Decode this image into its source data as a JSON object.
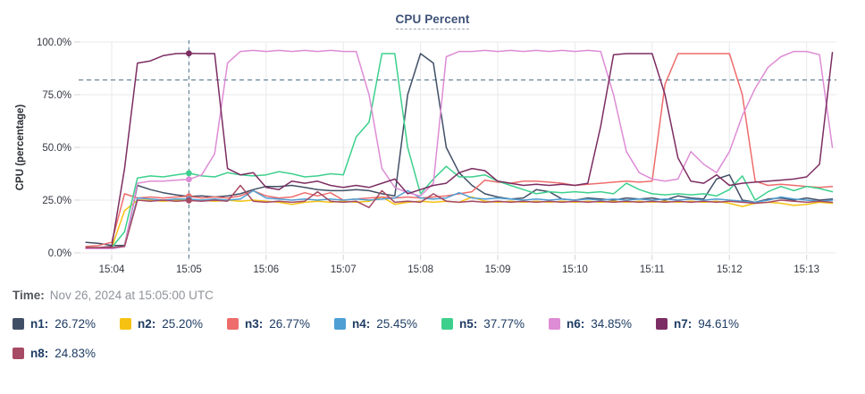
{
  "title": "CPU Percent",
  "time": {
    "label": "Time:",
    "value": "Nov 26, 2024 at 15:05:00 UTC"
  },
  "colors": {
    "grid": "#e9e9ec",
    "tick": "#d4d4d8",
    "axis_text": "#343741",
    "crosshair": "#4e7288",
    "threshold": "#4e7288"
  },
  "chart_data": {
    "type": "line",
    "title": "CPU Percent",
    "xlabel": "",
    "ylabel": "CPU (percentage)",
    "ylim": [
      0,
      100
    ],
    "xlim_minutes": [
      3.572,
      13.386
    ],
    "grid": true,
    "legend_position": "bottom",
    "y_tick_values": [
      0,
      25,
      50,
      75,
      100
    ],
    "y_tick_labels": [
      "0.0%",
      "25.0%",
      "50.0%",
      "75.0%",
      "100.0%"
    ],
    "x_tick_minutes": [
      4,
      5,
      6,
      7,
      8,
      9,
      10,
      11,
      12,
      13
    ],
    "x_tick_labels": [
      "15:04",
      "15:05",
      "15:06",
      "15:07",
      "15:08",
      "15:09",
      "15:10",
      "15:11",
      "15:12",
      "15:13"
    ],
    "start_minute": 3.6667,
    "step_minute": 0.16667,
    "threshold_percent": 82,
    "crosshair_minute": 5.0,
    "crosshair_time": "15:05:00 UTC",
    "series": [
      {
        "name": "n1",
        "color": "#414f66",
        "value_at_crosshair": "26.72%",
        "values": [
          5,
          4.5,
          3.5,
          3.5,
          32,
          30,
          28.5,
          27.5,
          26.72,
          27,
          26.5,
          27,
          28,
          30,
          31.5,
          31.5,
          32,
          31,
          30,
          29.5,
          29.5,
          30,
          29.5,
          28,
          27,
          75,
          94.5,
          90,
          50,
          38,
          32,
          28,
          26.5,
          25.5,
          26,
          30,
          29,
          25.5,
          25,
          26,
          25.5,
          25,
          26,
          25.5,
          26,
          25,
          27,
          26,
          25.5,
          35,
          37,
          25,
          24,
          25.5,
          26,
          25,
          26,
          25,
          25.5
        ]
      },
      {
        "name": "n2",
        "color": "#f5c212",
        "value_at_crosshair": "25.20%",
        "values": [
          2,
          2,
          2.5,
          20,
          25,
          25,
          24.5,
          25,
          25.2,
          25,
          24.5,
          25,
          24.5,
          25,
          24.5,
          24,
          23,
          24,
          24.5,
          24,
          24.5,
          24,
          24.5,
          26.5,
          23,
          24,
          24.5,
          24,
          24.5,
          24,
          26.5,
          24.5,
          24,
          24.5,
          24,
          24.5,
          24,
          24.5,
          24,
          24.5,
          24,
          24.5,
          24,
          24.5,
          24,
          24.5,
          24,
          24.5,
          24,
          24.5,
          23.5,
          22,
          23.5,
          24,
          23.5,
          22.5,
          23,
          24,
          23.5
        ]
      },
      {
        "name": "n3",
        "color": "#ee6c6c",
        "value_at_crosshair": "26.77%",
        "values": [
          3,
          3.5,
          5,
          28,
          26,
          26.5,
          26,
          26.5,
          26.77,
          26,
          26.5,
          26,
          27,
          29.5,
          27,
          26,
          26.5,
          28.5,
          27,
          28.5,
          25,
          25.5,
          26,
          26.5,
          26,
          26.5,
          26,
          26.5,
          27,
          28,
          29,
          34.5,
          33.5,
          33,
          34,
          34,
          33.5,
          33,
          32,
          32.5,
          33,
          33.5,
          34,
          33.5,
          34,
          80,
          94.5,
          94.5,
          94.5,
          94.5,
          94.5,
          75,
          34,
          32,
          32.5,
          32,
          31.5,
          31,
          31.5
        ]
      },
      {
        "name": "n4",
        "color": "#4f9fd4",
        "value_at_crosshair": "25.45%",
        "values": [
          2,
          2,
          2,
          3,
          26,
          25.5,
          25,
          25.5,
          25.45,
          25,
          25.5,
          25,
          25.5,
          29.5,
          26,
          25.5,
          25,
          25.5,
          25,
          25.5,
          25,
          25.5,
          25,
          25.5,
          26,
          29.5,
          26,
          25.5,
          26,
          28.5,
          26,
          25.5,
          26,
          25.5,
          25,
          25.5,
          25,
          25.5,
          25,
          25.5,
          25,
          25.5,
          25,
          25.5,
          25,
          25.5,
          25,
          25.5,
          25,
          25.5,
          25,
          24.5,
          24,
          25,
          26.5,
          25.5,
          25,
          24.5,
          25
        ]
      },
      {
        "name": "n5",
        "color": "#3dd08d",
        "value_at_crosshair": "37.77%",
        "values": [
          2.5,
          2.5,
          2.5,
          10,
          35.5,
          36.5,
          36,
          37,
          37.77,
          36.5,
          36,
          38,
          37,
          36.5,
          37,
          38.5,
          37.5,
          36,
          36.5,
          37.5,
          37,
          55,
          62,
          94.5,
          94.5,
          50,
          28,
          35,
          41,
          36,
          36,
          37,
          34,
          32,
          30,
          28,
          29,
          28.5,
          29,
          28.5,
          29,
          28,
          33,
          30,
          28,
          27.5,
          28,
          27.5,
          28,
          27,
          30,
          36.5,
          25,
          29,
          31.5,
          29.5,
          31.5,
          30.5,
          29
        ]
      },
      {
        "name": "n6",
        "color": "#de8cd5",
        "value_at_crosshair": "34.85%",
        "values": [
          2,
          2,
          2,
          3,
          33,
          34,
          34,
          34.5,
          34.85,
          37,
          47,
          90,
          95.5,
          96,
          95.5,
          96,
          95.5,
          96,
          95.5,
          96,
          95.5,
          95.5,
          75,
          40,
          31,
          28.5,
          27,
          33,
          93,
          95.5,
          95.5,
          96,
          95.5,
          96,
          95.5,
          96,
          95.5,
          96,
          95.5,
          96,
          95.5,
          75,
          48,
          38,
          35,
          34,
          35,
          48,
          42,
          38,
          48,
          65,
          78,
          88,
          93,
          95.5,
          95.5,
          94,
          50
        ]
      },
      {
        "name": "n7",
        "color": "#7c2d62",
        "value_at_crosshair": "94.61%",
        "values": [
          2.5,
          2.5,
          3,
          40,
          90,
          91,
          93.5,
          94.5,
          94.61,
          94.5,
          94.5,
          40,
          37,
          38,
          31,
          30,
          34,
          33,
          34,
          32,
          31,
          32,
          31,
          33,
          35,
          28,
          30,
          32,
          33,
          38,
          40,
          39,
          34,
          33,
          32,
          32.5,
          32,
          32.5,
          32,
          33,
          60,
          94,
          94.5,
          94.5,
          94.5,
          75,
          45,
          34,
          33,
          37,
          32,
          33,
          33.5,
          34,
          34.5,
          35,
          36,
          42,
          95
        ]
      },
      {
        "name": "n8",
        "color": "#a74a64",
        "value_at_crosshair": "24.83%",
        "values": [
          2.5,
          2.5,
          2.5,
          3,
          25,
          24.5,
          25,
          24.5,
          24.83,
          24.5,
          25,
          24.5,
          32,
          24.5,
          24,
          24.5,
          24,
          24.5,
          29,
          24.5,
          24,
          24.5,
          21.5,
          29.5,
          24,
          24.5,
          24,
          28,
          24.5,
          24,
          24.5,
          24,
          24.5,
          24,
          24.5,
          24,
          24.5,
          24,
          24.5,
          24,
          24.5,
          24,
          24.5,
          24,
          24.5,
          24,
          24.5,
          24,
          24.5,
          24,
          24.5,
          24,
          23.5,
          24,
          25,
          24.5,
          24,
          24.5,
          24
        ]
      }
    ]
  },
  "legend": {
    "items": [
      {
        "label": "n1:",
        "value": "26.72%",
        "color": "#414f66"
      },
      {
        "label": "n2:",
        "value": "25.20%",
        "color": "#f5c212"
      },
      {
        "label": "n3:",
        "value": "26.77%",
        "color": "#ee6c6c"
      },
      {
        "label": "n4:",
        "value": "25.45%",
        "color": "#4f9fd4"
      },
      {
        "label": "n5:",
        "value": "37.77%",
        "color": "#3dd08d"
      },
      {
        "label": "n6:",
        "value": "34.85%",
        "color": "#de8cd5"
      },
      {
        "label": "n7:",
        "value": "94.61%",
        "color": "#7c2d62"
      },
      {
        "label": "n8:",
        "value": "24.83%",
        "color": "#a74a64"
      }
    ]
  }
}
